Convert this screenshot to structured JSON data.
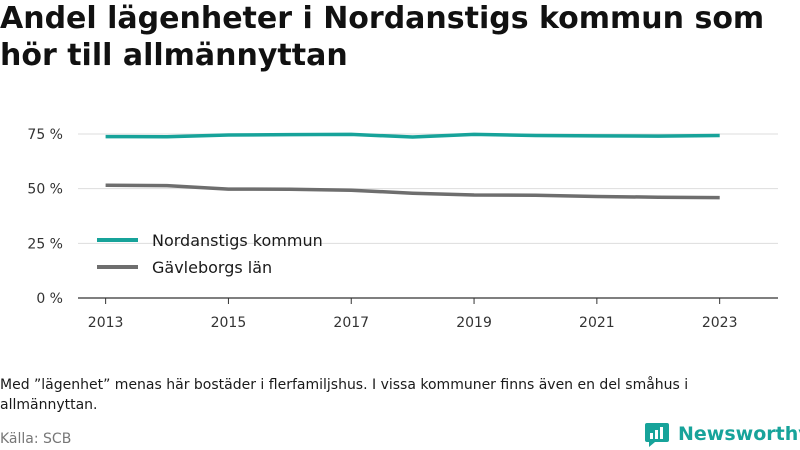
{
  "title": "Andel lägenheter i Nordanstigs kommun som hör till allmännyttan",
  "note": "Med ”lägenhet” menas här bostäder i flerfamiljshus. I vissa kommuner finns även en del småhus i allmännyttan.",
  "source": "Källa: SCB",
  "brand": {
    "name": "Newsworthy",
    "color": "#17a39a"
  },
  "chart_data": {
    "type": "line",
    "x": [
      2013,
      2014,
      2015,
      2016,
      2017,
      2018,
      2019,
      2020,
      2021,
      2022,
      2023
    ],
    "x_tick_labels": [
      "2013",
      "2015",
      "2017",
      "2019",
      "2021",
      "2023"
    ],
    "y_ticks": [
      0,
      25,
      50,
      75
    ],
    "y_tick_labels": [
      "0 %",
      "25 %",
      "50 %",
      "75 %"
    ],
    "ylim": [
      0,
      80
    ],
    "grid": true,
    "legend_position": "lower-left",
    "series": [
      {
        "name": "Nordanstigs kommun",
        "color": "#17a39a",
        "values": [
          73.8,
          73.7,
          74.5,
          74.7,
          74.8,
          73.6,
          74.8,
          74.3,
          74.1,
          74.0,
          74.3
        ]
      },
      {
        "name": "Gävleborgs län",
        "color": "#6e6e6e",
        "values": [
          51.5,
          51.4,
          49.8,
          49.7,
          49.3,
          47.9,
          47.1,
          47.0,
          46.4,
          46.1,
          45.9
        ]
      }
    ]
  }
}
